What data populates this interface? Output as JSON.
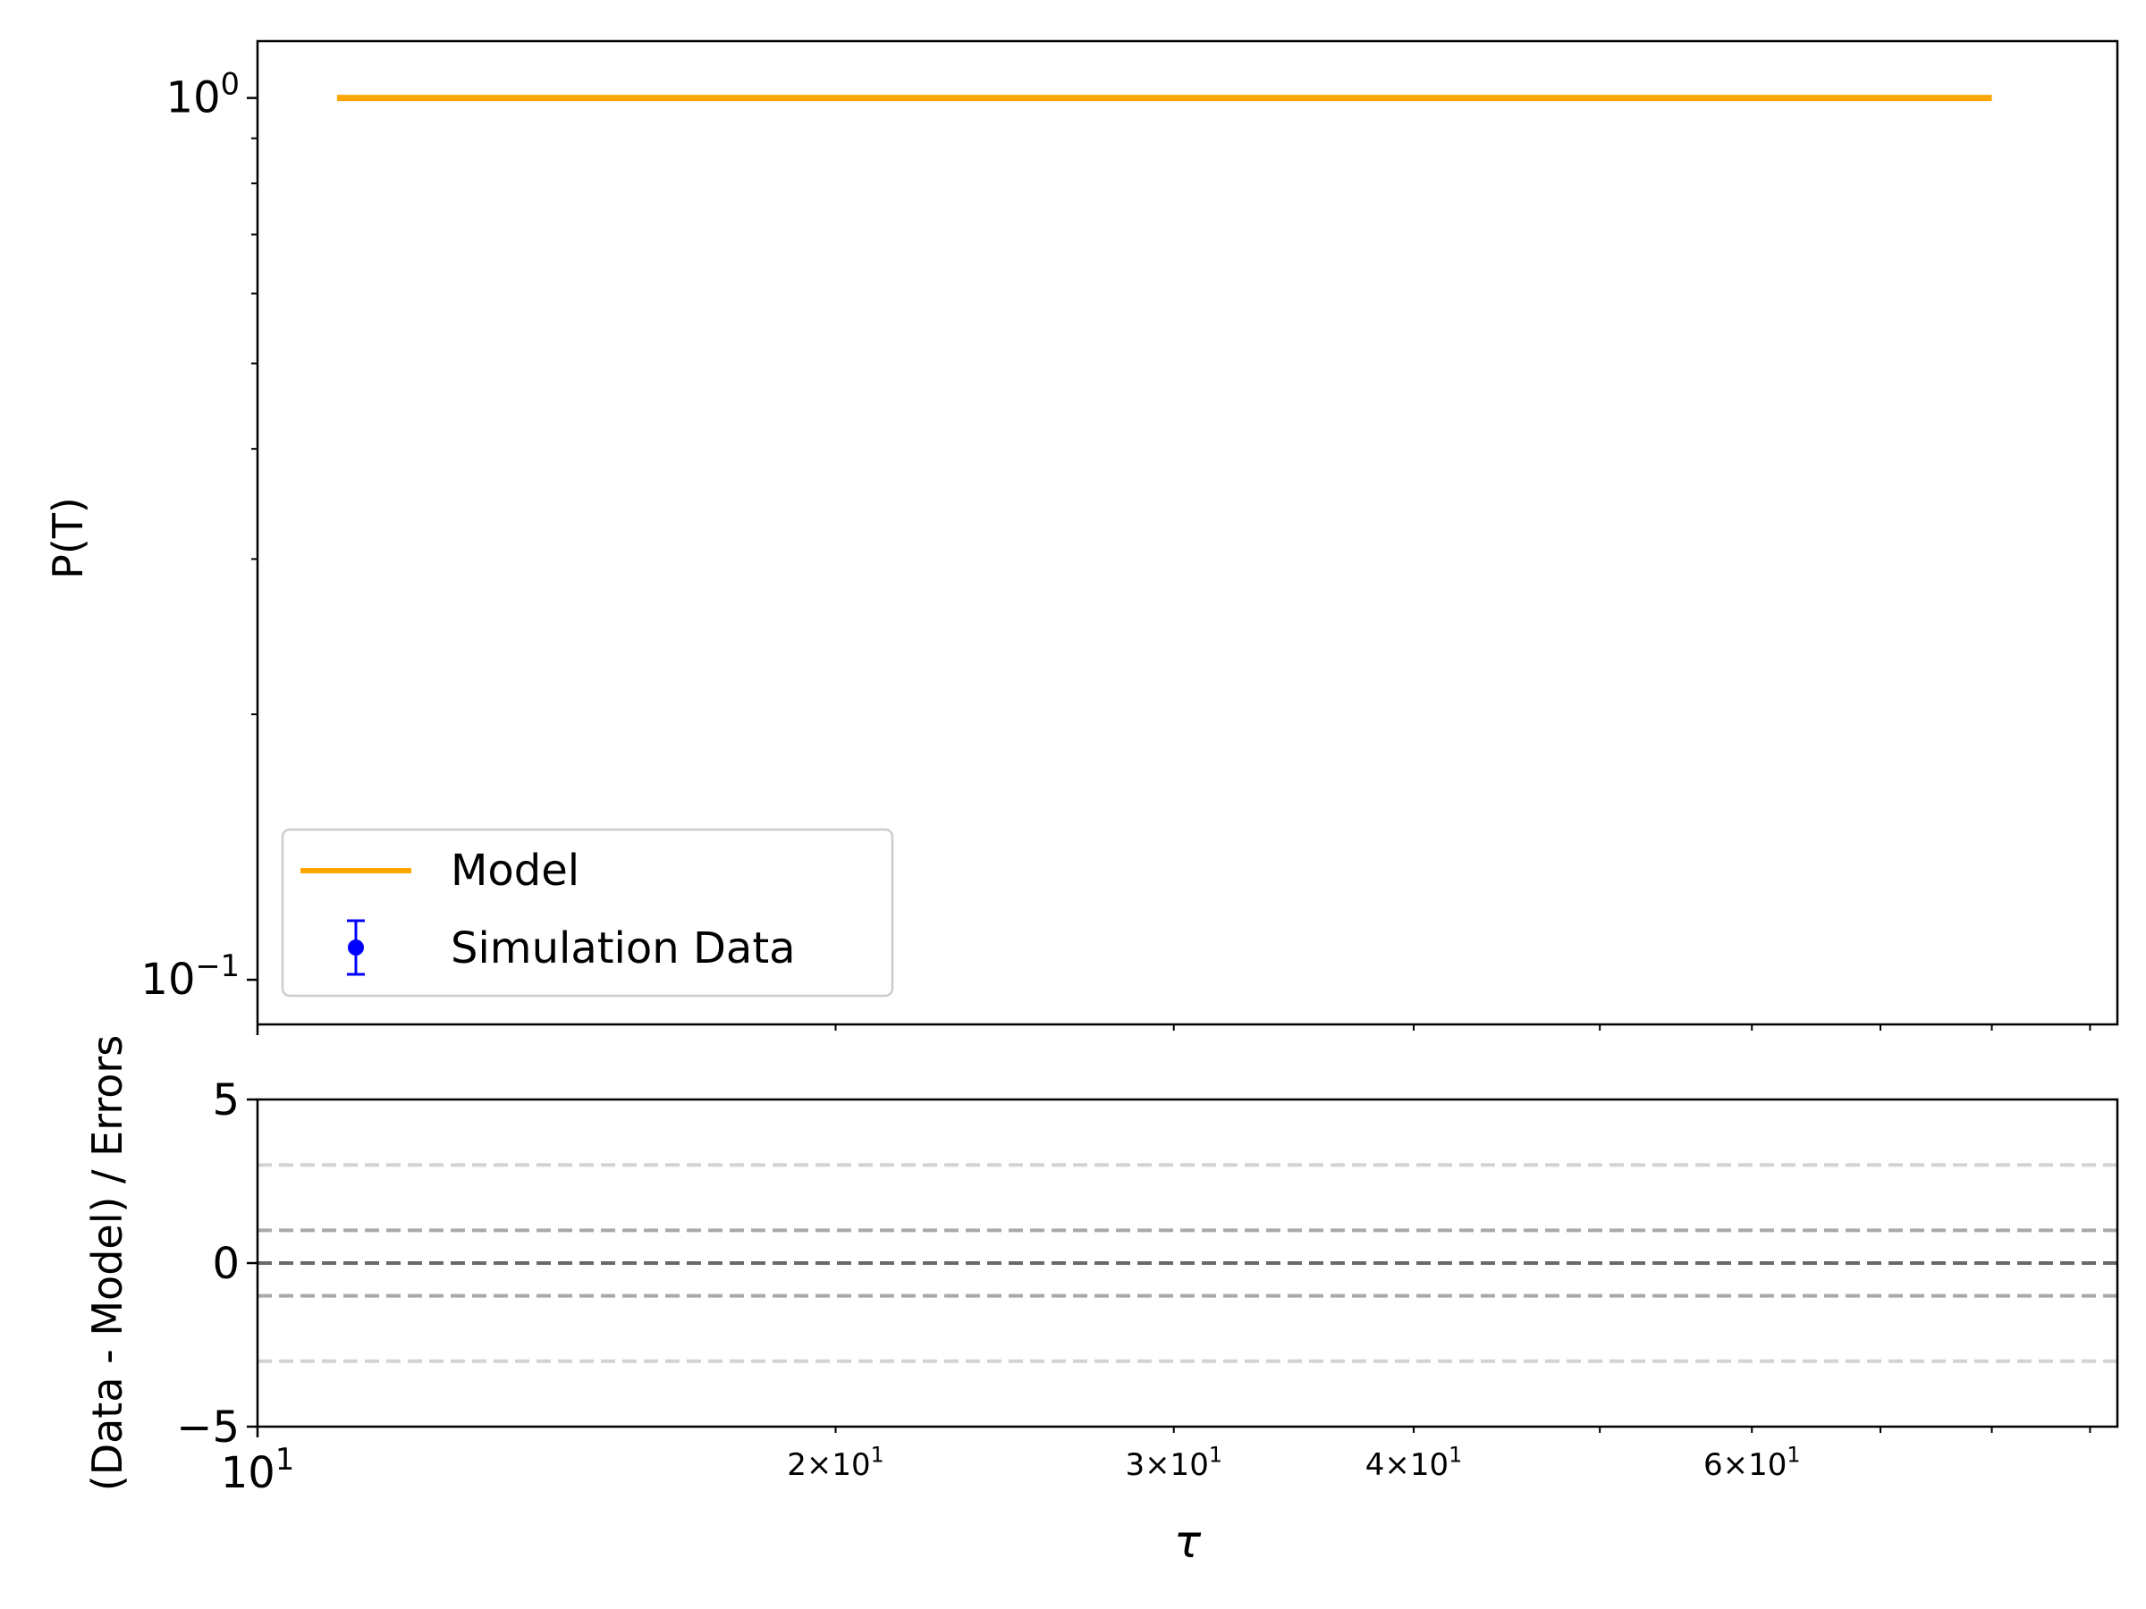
{
  "chart_data": [
    {
      "type": "line",
      "panel": "main",
      "xscale": "log",
      "yscale": "log",
      "xlim": [
        10,
        93
      ],
      "ylim": [
        0.089,
        1.16
      ],
      "ylabel": "P(T)",
      "yticks": [
        {
          "value": 1.0,
          "base": "10",
          "exp": "0"
        },
        {
          "value": 0.1,
          "base": "10",
          "exp": "−1"
        }
      ],
      "legend": {
        "placement": "lower-left"
      },
      "series": [
        {
          "name": "Model",
          "color": "#ffa500",
          "x": [
            11,
            80
          ],
          "y": [
            1.0,
            1.0
          ]
        },
        {
          "name": "Simulation Data",
          "color": "#0000ff",
          "kind": "errorbar",
          "x": [],
          "y": []
        }
      ],
      "grid": false
    },
    {
      "type": "line",
      "panel": "residuals",
      "xscale": "log",
      "xlim": [
        10,
        93
      ],
      "ylim": [
        -5,
        5
      ],
      "ylabel": "(Data - Model) / Errors",
      "xlabel": "τ",
      "yticks": [
        "5",
        "0",
        "−5"
      ],
      "xticks": [
        {
          "value": 10,
          "base": "10",
          "exp": "1",
          "major": true
        },
        {
          "value": 20,
          "base": "2×10",
          "exp": "1",
          "major": false
        },
        {
          "value": 30,
          "base": "3×10",
          "exp": "1",
          "major": false
        },
        {
          "value": 40,
          "base": "4×10",
          "exp": "1",
          "major": false
        },
        {
          "value": 60,
          "base": "6×10",
          "exp": "1",
          "major": false
        }
      ],
      "reference_lines": [
        {
          "y": 3,
          "color": "#d3d3d3",
          "style": "dashed"
        },
        {
          "y": 1,
          "color": "#a9a9a9",
          "style": "dashed"
        },
        {
          "y": 0,
          "color": "#696969",
          "style": "dashed"
        },
        {
          "y": -1,
          "color": "#a9a9a9",
          "style": "dashed"
        },
        {
          "y": -3,
          "color": "#d3d3d3",
          "style": "dashed"
        }
      ],
      "grid": false
    }
  ]
}
